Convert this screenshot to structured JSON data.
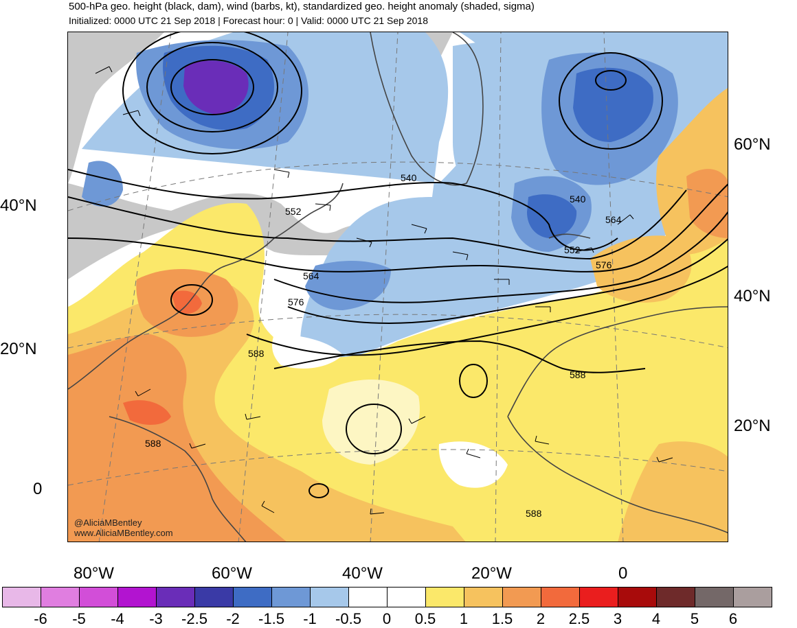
{
  "title": "500-hPa geo. height (black, dam), wind (barbs, kt), standardized geo. height anomaly (shaded, sigma)",
  "subtitle": "Initialized: 0000 UTC 21 Sep 2018 | Forecast hour: 0 | Valid: 0000 UTC 21 Sep 2018",
  "credit": {
    "handle": "@AliciaMBentley",
    "website": "www.AliciaMBentley.com"
  },
  "axes": {
    "left_lat_labels": [
      "40°N",
      "20°N",
      "0"
    ],
    "right_lat_labels": [
      "60°N",
      "40°N",
      "20°N"
    ],
    "lon_labels": [
      "80°W",
      "60°W",
      "40°W",
      "20°W",
      "0"
    ]
  },
  "contour_labels": [
    "540",
    "552",
    "564",
    "576",
    "588",
    "540",
    "552",
    "564",
    "576",
    "588",
    "588",
    "588"
  ],
  "colorbar": {
    "colors": [
      "#e8b8e8",
      "#e07ee0",
      "#d24ed8",
      "#b214d0",
      "#6a2db8",
      "#3a3aa6",
      "#3e6cc4",
      "#6e98d6",
      "#a6c8ea",
      "#ffffff",
      "#ffffff",
      "#fbe86a",
      "#f6c25e",
      "#f29a52",
      "#f26a3c",
      "#ea1e1e",
      "#a80b0b",
      "#6e2a2a",
      "#746868",
      "#aa9e9e"
    ],
    "tick_labels": [
      "-6",
      "-5",
      "-4",
      "-3",
      "-2.5",
      "-2",
      "-1.5",
      "-1",
      "-0.5",
      "0",
      "0.5",
      "1",
      "1.5",
      "2",
      "2.5",
      "3",
      "4",
      "5",
      "6"
    ]
  },
  "map_colors": {
    "land_gray": "#c8c8c8",
    "neg_light": "#a6c8ea",
    "neg_mid": "#6e98d6",
    "neg_strong": "#3e6cc4",
    "neg_deep": "#3a3aa6",
    "neg_extreme": "#6a2db8",
    "pos_light": "#fbe86a",
    "pos_mid": "#f6c25e",
    "pos_strong": "#f29a52",
    "pos_hot": "#f26a3c"
  }
}
